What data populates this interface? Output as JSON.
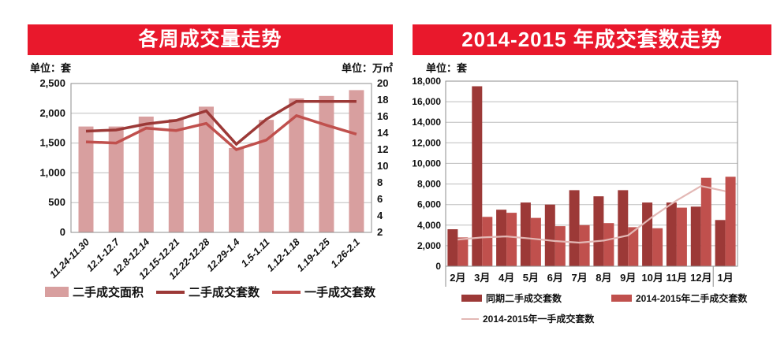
{
  "colors": {
    "banner": "#e9182c",
    "banner_text": "#ffffff",
    "grid": "#bdbdbd",
    "plot_border": "#8e8e8e",
    "text": "#111111",
    "pink_bar": "#d89f9f",
    "dark_red": "#9c3937",
    "medium_red": "#c0504d",
    "pink_line": "#e3b8b5"
  },
  "chart_data": [
    {
      "type": "bar+line",
      "title": "各周成交量走势",
      "unit_left": "单位：套",
      "unit_right": "单位：万㎡",
      "categories": [
        "11.24-11.30",
        "12.1-12.7",
        "12.8-12.14",
        "12.15-12.21",
        "12.22-12.28",
        "12.29-1.4",
        "1.5-1.11",
        "1.12-1.18",
        "1.19-1.25",
        "1.26-2.1"
      ],
      "left_axis": {
        "label": "套",
        "min": 0,
        "max": 2500,
        "step": 500,
        "ticks": [
          "2,500",
          "2,000",
          "1,500",
          "1,000",
          "500",
          "0"
        ]
      },
      "right_axis": {
        "label": "万㎡",
        "min": 2,
        "max": 20,
        "step": 2,
        "ticks": [
          "20",
          "18",
          "16",
          "14",
          "12",
          "10",
          "8",
          "6",
          "4",
          "2"
        ]
      },
      "grid": true,
      "legend_position": "bottom",
      "series": [
        {
          "name": "二手成交面积",
          "type": "bar",
          "axis": "right",
          "color": "#d89f9f",
          "values": [
            14.8,
            14.8,
            16.0,
            15.7,
            17.2,
            12.2,
            15.6,
            18.2,
            18.5,
            19.2
          ]
        },
        {
          "name": "二手成交套数",
          "type": "line",
          "axis": "left",
          "color": "#9c3937",
          "values": [
            1700,
            1720,
            1820,
            1880,
            2040,
            1480,
            1900,
            2200,
            2200,
            2200
          ]
        },
        {
          "name": "一手成交套数",
          "type": "line",
          "axis": "left",
          "color": "#c0504d",
          "values": [
            1520,
            1500,
            1750,
            1710,
            1830,
            1390,
            1550,
            1960,
            1800,
            1650
          ]
        }
      ]
    },
    {
      "type": "bar+line",
      "title": "2014-2015 年成交套数走势",
      "unit_left": "单位：套",
      "categories": [
        "2月",
        "3月",
        "4月",
        "5月",
        "6月",
        "7月",
        "8月",
        "9月",
        "10月",
        "11月",
        "12月",
        "1月"
      ],
      "left_axis": {
        "label": "套",
        "min": 0,
        "max": 18000,
        "step": 2000,
        "ticks": [
          "18,000",
          "16,000",
          "14,000",
          "12,000",
          "10,000",
          "8,000",
          "6,000",
          "4,000",
          "2,000",
          "0"
        ]
      },
      "grid": true,
      "legend_position": "bottom",
      "year_separator_after": "12月",
      "series": [
        {
          "name": "同期二手成交套数",
          "type": "bar",
          "axis": "left",
          "color": "#9c3937",
          "values": [
            3600,
            17500,
            5500,
            6200,
            6000,
            7400,
            6800,
            7400,
            6200,
            6200,
            5800,
            4500
          ]
        },
        {
          "name": "2014-2015年二手成交套数",
          "type": "bar",
          "axis": "left",
          "color": "#c0504d",
          "values": [
            2800,
            4800,
            5200,
            4700,
            3900,
            4000,
            4200,
            3800,
            3700,
            5700,
            8600,
            8700
          ]
        },
        {
          "name": "2014-2015年一手成交套数",
          "type": "line",
          "axis": "left",
          "color": "#e3b8b5",
          "values": [
            2600,
            2800,
            2900,
            2700,
            2450,
            2300,
            2500,
            3000,
            4800,
            6400,
            7800,
            7300
          ]
        }
      ]
    }
  ]
}
